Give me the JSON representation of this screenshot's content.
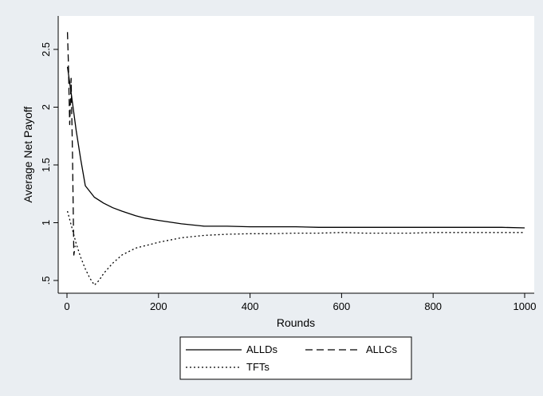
{
  "chart_data": {
    "type": "line",
    "title": "",
    "xlabel": "Rounds",
    "ylabel": "Average Net Payoff",
    "xlim": [
      0,
      1000
    ],
    "ylim": [
      0.45,
      2.65
    ],
    "x_ticks": [
      0,
      200,
      400,
      600,
      800,
      1000
    ],
    "y_ticks": [
      0.5,
      1,
      1.5,
      2,
      2.5
    ],
    "x_tick_labels": [
      "0",
      "200",
      "400",
      "600",
      "800",
      "1000"
    ],
    "y_tick_labels": [
      ".5",
      "1",
      "1.5",
      "2",
      "2.5"
    ],
    "grid": false,
    "legend_placement": "bottom",
    "colors": {
      "background": "#eaeef2",
      "plot_area": "#ffffff",
      "line": "#000000"
    },
    "series": [
      {
        "name": "ALLDs",
        "style": "solid",
        "x": [
          1,
          10,
          20,
          30,
          40,
          60,
          80,
          100,
          120,
          150,
          170,
          200,
          250,
          300,
          350,
          400,
          450,
          500,
          550,
          600,
          650,
          700,
          750,
          800,
          850,
          900,
          950,
          1000
        ],
        "y": [
          2.35,
          2.1,
          1.8,
          1.55,
          1.32,
          1.22,
          1.17,
          1.13,
          1.1,
          1.06,
          1.04,
          1.02,
          0.99,
          0.97,
          0.97,
          0.965,
          0.965,
          0.965,
          0.96,
          0.96,
          0.96,
          0.96,
          0.96,
          0.96,
          0.96,
          0.96,
          0.96,
          0.955
        ]
      },
      {
        "name": "ALLCs",
        "style": "dashed",
        "x": [
          1,
          3,
          6,
          9,
          12,
          15,
          18
        ],
        "y": [
          2.65,
          2.4,
          1.85,
          2.25,
          1.6,
          0.72,
          0.8
        ]
      },
      {
        "name": "TFTs",
        "style": "dotted",
        "x": [
          1,
          10,
          20,
          30,
          40,
          50,
          60,
          70,
          80,
          100,
          120,
          150,
          170,
          200,
          250,
          300,
          350,
          400,
          450,
          500,
          550,
          600,
          650,
          700,
          750,
          800,
          850,
          900,
          950,
          1000
        ],
        "y": [
          1.1,
          0.97,
          0.82,
          0.7,
          0.6,
          0.52,
          0.46,
          0.5,
          0.56,
          0.65,
          0.72,
          0.78,
          0.8,
          0.83,
          0.87,
          0.89,
          0.9,
          0.905,
          0.905,
          0.91,
          0.91,
          0.915,
          0.91,
          0.91,
          0.91,
          0.915,
          0.915,
          0.915,
          0.915,
          0.915
        ]
      }
    ]
  }
}
